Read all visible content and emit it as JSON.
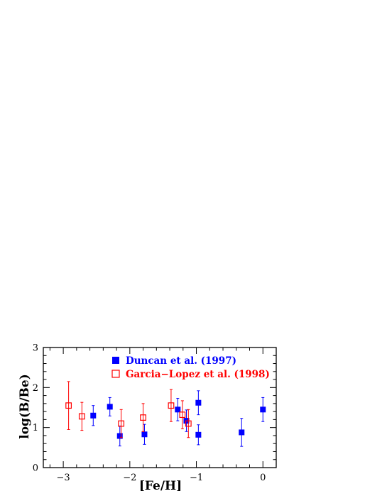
{
  "chart_data": {
    "type": "scatter",
    "title": "",
    "xlabel": "[Fe/H]",
    "ylabel": "log(B/Be)",
    "xlim": [
      -3.3,
      0.2
    ],
    "ylim": [
      0,
      3
    ],
    "xticks": [
      -3,
      -2,
      -1,
      0
    ],
    "xtick_labels": [
      "−3",
      "−2",
      "−1",
      "0"
    ],
    "yticks": [
      0,
      1,
      2,
      3
    ],
    "ytick_labels": [
      "0",
      "1",
      "2",
      "3"
    ],
    "grid": false,
    "legend_position": "top-center",
    "series": [
      {
        "name": "Duncan et al. (1997)",
        "marker": "filled-square",
        "color": "#0000ff",
        "points": [
          {
            "x": -2.55,
            "y": 1.3,
            "err": 0.25
          },
          {
            "x": -2.3,
            "y": 1.52,
            "err": 0.23
          },
          {
            "x": -2.15,
            "y": 0.79,
            "err": 0.25
          },
          {
            "x": -1.78,
            "y": 0.83,
            "err": 0.25
          },
          {
            "x": -1.28,
            "y": 1.45,
            "err": 0.28
          },
          {
            "x": -1.15,
            "y": 1.17,
            "err": 0.27
          },
          {
            "x": -0.97,
            "y": 1.62,
            "err": 0.3
          },
          {
            "x": -0.97,
            "y": 0.82,
            "err": 0.25
          },
          {
            "x": -0.32,
            "y": 0.88,
            "err": 0.35
          },
          {
            "x": 0.0,
            "y": 1.45,
            "err": 0.3
          }
        ]
      },
      {
        "name": "Garcia−Lopez et al. (1998)",
        "marker": "open-square",
        "color": "#ff0000",
        "points": [
          {
            "x": -2.92,
            "y": 1.55,
            "err": 0.6
          },
          {
            "x": -2.72,
            "y": 1.28,
            "err": 0.35
          },
          {
            "x": -2.13,
            "y": 1.1,
            "err": 0.35
          },
          {
            "x": -1.8,
            "y": 1.25,
            "err": 0.35
          },
          {
            "x": -1.38,
            "y": 1.55,
            "err": 0.4
          },
          {
            "x": -1.21,
            "y": 1.32,
            "err": 0.35
          },
          {
            "x": -1.12,
            "y": 1.1,
            "err": 0.35
          }
        ]
      }
    ]
  }
}
